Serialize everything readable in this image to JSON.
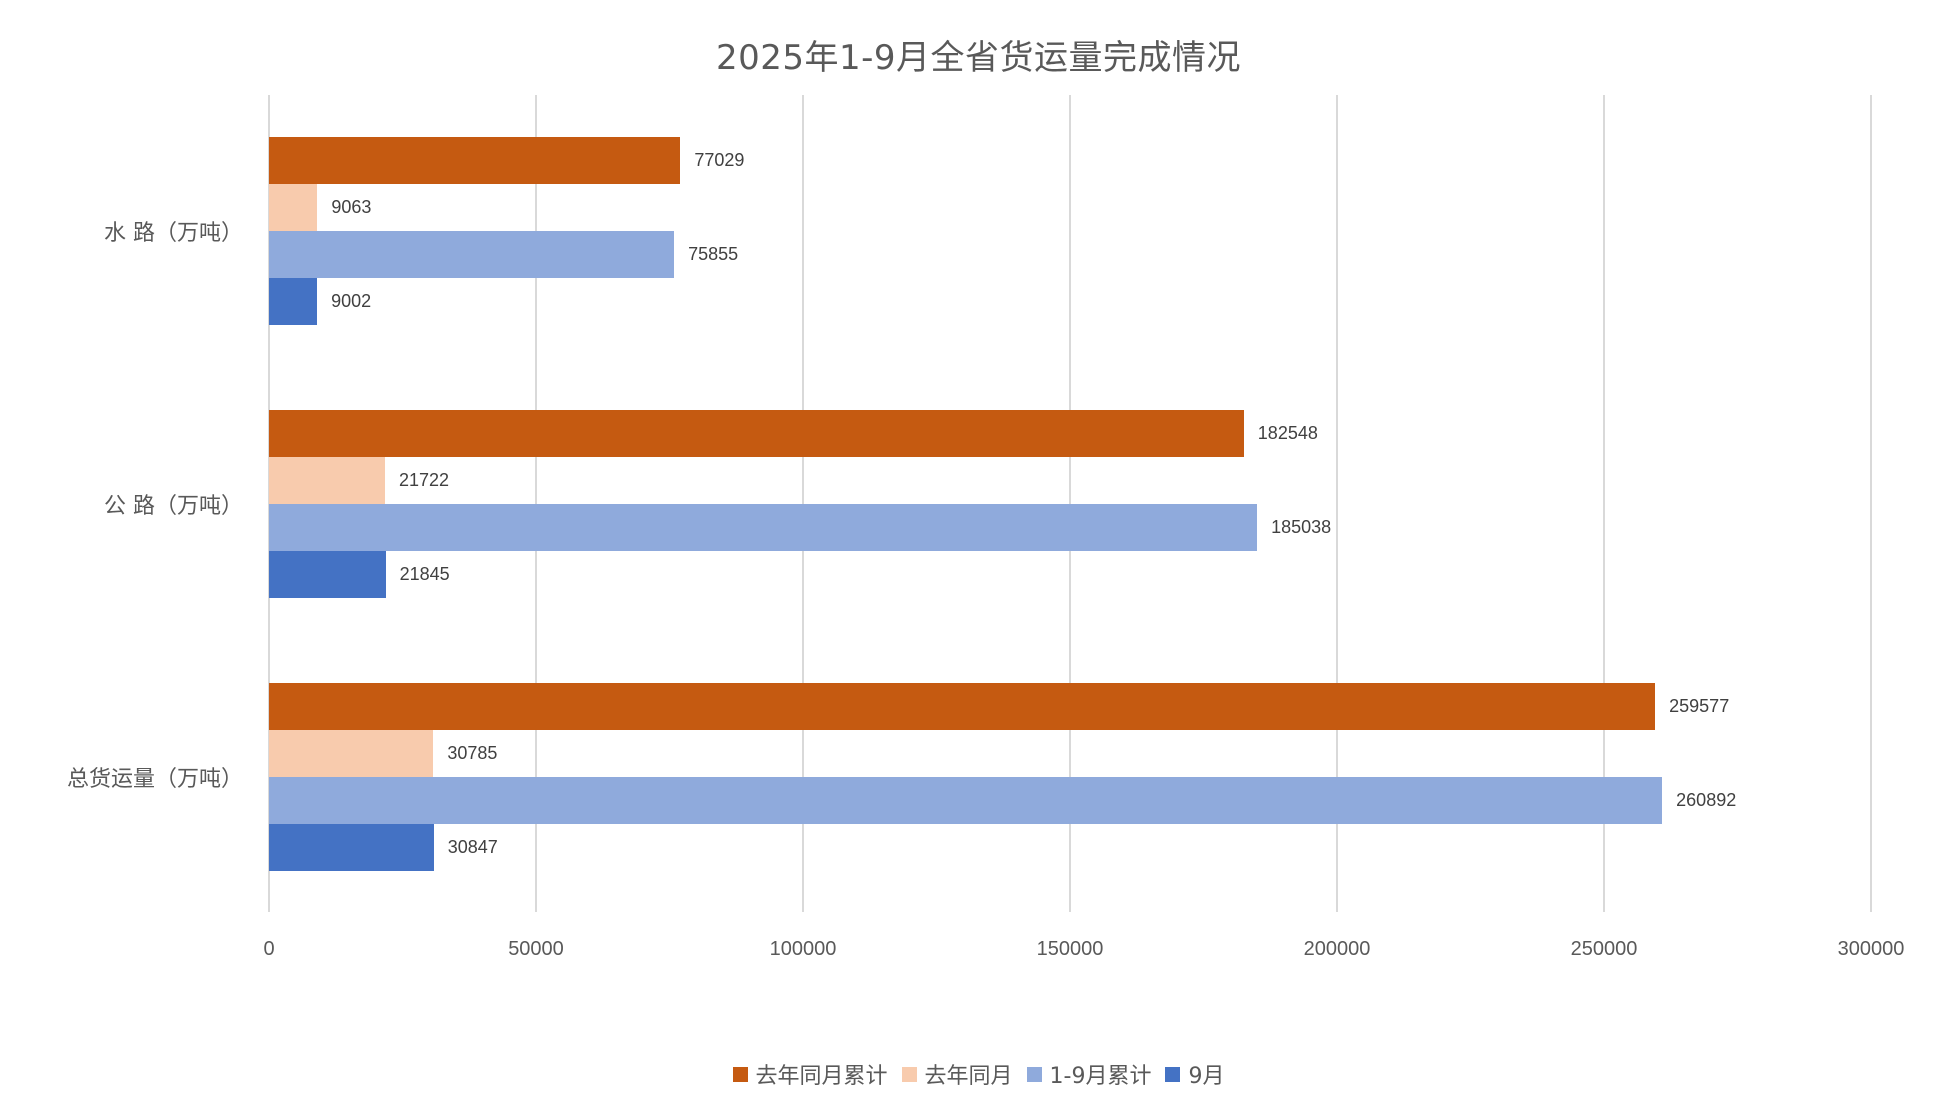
{
  "title": "2025年1-9月全省货运量完成情况",
  "chart_data": {
    "type": "bar",
    "orientation": "horizontal",
    "title": "2025年1-9月全省货运量完成情况",
    "xlabel": "",
    "ylabel": "",
    "xlim": [
      0,
      300000
    ],
    "x_ticks": [
      "0",
      "50000",
      "100000",
      "150000",
      "200000",
      "250000",
      "300000"
    ],
    "grid": "vertical",
    "legend_position": "bottom",
    "categories": [
      "水 路（万吨）",
      "公 路（万吨）",
      "总货运量（万吨）"
    ],
    "series": [
      {
        "name": "去年同月累计",
        "color": "#C55A11",
        "values": [
          77029,
          182548,
          259577
        ]
      },
      {
        "name": "去年同月",
        "color": "#F8CBAD",
        "values": [
          9063,
          21722,
          30785
        ]
      },
      {
        "name": "1-9月累计",
        "color": "#8FAADC",
        "values": [
          75855,
          185038,
          260892
        ]
      },
      {
        "name": "9月",
        "color": "#4472C4",
        "values": [
          9002,
          21845,
          30847
        ]
      }
    ]
  },
  "legend": [
    {
      "label": "去年同月累计",
      "color": "#C55A11"
    },
    {
      "label": "去年同月",
      "color": "#F8CBAD"
    },
    {
      "label": "1-9月累计",
      "color": "#8FAADC"
    },
    {
      "label": "9月",
      "color": "#4472C4"
    }
  ]
}
